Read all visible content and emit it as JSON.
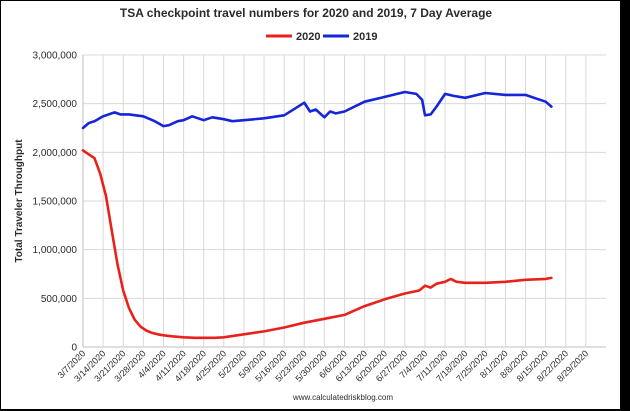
{
  "chart_data": {
    "type": "line",
    "title": "TSA checkpoint travel numbers for 2020 and 2019, 7 Day Average",
    "ylabel": "Total Traveler Throughput",
    "xlabel": "",
    "source": "www.calculatedriskblog.com",
    "ylim": [
      0,
      3000000
    ],
    "yticks": [
      0,
      500000,
      1000000,
      1500000,
      2000000,
      2500000,
      3000000
    ],
    "ytick_labels": [
      "0",
      "500,000",
      "1,000,000",
      "1,500,000",
      "2,000,000",
      "2,500,000",
      "3,000,000"
    ],
    "xlim": [
      0,
      182
    ],
    "xticks": [
      0,
      7,
      14,
      21,
      28,
      35,
      42,
      49,
      56,
      63,
      70,
      77,
      84,
      91,
      98,
      105,
      112,
      119,
      126,
      133,
      140,
      147,
      154,
      161,
      168,
      175
    ],
    "xtick_labels": [
      "3/7/2020",
      "3/14/2020",
      "3/21/2020",
      "3/28/2020",
      "4/4/2020",
      "4/11/2020",
      "4/18/2020",
      "4/25/2020",
      "5/2/2020",
      "5/9/2020",
      "5/16/2020",
      "5/23/2020",
      "5/30/2020",
      "6/6/2020",
      "6/13/2020",
      "6/20/2020",
      "6/27/2020",
      "7/4/2020",
      "7/11/2020",
      "7/18/2020",
      "7/25/2020",
      "8/1/2020",
      "8/8/2020",
      "8/15/2020",
      "8/22/2020",
      "8/29/2020"
    ],
    "grid": true,
    "legend_position": "top-center",
    "series": [
      {
        "name": "2020",
        "color": "#e8221b",
        "x": [
          "3/7/2020",
          "3/9/2020",
          "3/11/2020",
          "3/13/2020",
          "3/15/2020",
          "3/17/2020",
          "3/19/2020",
          "3/21/2020",
          "3/23/2020",
          "3/25/2020",
          "3/27/2020",
          "3/29/2020",
          "3/31/2020",
          "4/2/2020",
          "4/4/2020",
          "4/7/2020",
          "4/11/2020",
          "4/15/2020",
          "4/18/2020",
          "4/22/2020",
          "4/25/2020",
          "5/2/2020",
          "5/9/2020",
          "5/16/2020",
          "5/23/2020",
          "5/30/2020",
          "6/6/2020",
          "6/13/2020",
          "6/20/2020",
          "6/27/2020",
          "7/2/2020",
          "7/4/2020",
          "7/6/2020",
          "7/8/2020",
          "7/11/2020",
          "7/13/2020",
          "7/15/2020",
          "7/18/2020",
          "7/25/2020",
          "8/1/2020",
          "8/8/2020",
          "8/15/2020",
          "8/17/2020"
        ],
        "values": [
          2020000,
          1980000,
          1940000,
          1780000,
          1550000,
          1200000,
          850000,
          580000,
          400000,
          280000,
          210000,
          170000,
          145000,
          130000,
          120000,
          110000,
          100000,
          95000,
          95000,
          95000,
          100000,
          130000,
          160000,
          200000,
          250000,
          290000,
          330000,
          420000,
          490000,
          550000,
          580000,
          630000,
          610000,
          650000,
          670000,
          700000,
          670000,
          660000,
          660000,
          670000,
          690000,
          700000,
          710000
        ]
      },
      {
        "name": "2019",
        "color": "#1526d8",
        "x": [
          "3/7/2020",
          "3/9/2020",
          "3/11/2020",
          "3/14/2020",
          "3/18/2020",
          "3/20/2020",
          "3/23/2020",
          "3/28/2020",
          "4/1/2020",
          "4/4/2020",
          "4/6/2020",
          "4/9/2020",
          "4/11/2020",
          "4/14/2020",
          "4/18/2020",
          "4/21/2020",
          "4/25/2020",
          "4/28/2020",
          "5/2/2020",
          "5/9/2020",
          "5/16/2020",
          "5/23/2020",
          "5/25/2020",
          "5/27/2020",
          "5/30/2020",
          "6/1/2020",
          "6/3/2020",
          "6/6/2020",
          "6/13/2020",
          "6/20/2020",
          "6/27/2020",
          "7/1/2020",
          "7/3/2020",
          "7/4/2020",
          "7/6/2020",
          "7/8/2020",
          "7/11/2020",
          "7/14/2020",
          "7/18/2020",
          "7/25/2020",
          "8/1/2020",
          "8/8/2020",
          "8/12/2020",
          "8/15/2020",
          "8/17/2020"
        ],
        "values": [
          2250000,
          2300000,
          2320000,
          2370000,
          2410000,
          2390000,
          2390000,
          2370000,
          2320000,
          2270000,
          2280000,
          2320000,
          2330000,
          2370000,
          2330000,
          2360000,
          2340000,
          2320000,
          2330000,
          2350000,
          2380000,
          2510000,
          2420000,
          2440000,
          2360000,
          2420000,
          2400000,
          2420000,
          2520000,
          2570000,
          2620000,
          2600000,
          2540000,
          2380000,
          2390000,
          2470000,
          2600000,
          2580000,
          2560000,
          2610000,
          2590000,
          2590000,
          2550000,
          2520000,
          2470000
        ]
      }
    ]
  }
}
